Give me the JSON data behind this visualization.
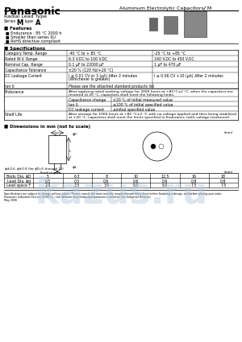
{
  "title_company": "Panasonic",
  "title_right": "Aluminum Electrolytic Capacitors/ M",
  "subtitle": "Radial Lead Type",
  "series_label": "Series",
  "series_value": "M",
  "type_label": "type",
  "type_value": "A",
  "features_title": "Features",
  "features": [
    "Endurance : 85 °C 2000 h",
    "Smaller than series SU",
    "RoHS directive compliant"
  ],
  "specs_title": "Specifications",
  "spec_rows": [
    [
      "Category Temp. Range",
      "-40 °C to + 85 °C",
      "-25 °C to +85 °C"
    ],
    [
      "Rated W.V. Range",
      "6.3 V.DC to 100 V.DC",
      "160 V.DC to 450 V.DC"
    ],
    [
      "Nominal Cap. Range",
      "0.1 μF to 22000 μF",
      "1 μF to 470 μF"
    ],
    [
      "Capacitance Tolerance",
      "±20 % (120 Hz/+20 °C)",
      ""
    ],
    [
      "DC Leakage Current",
      "I ≤ 0.01 CV or 3 (μA) After 2 minutes\n(Whichever is greater)",
      "I ≤ 0.06 CV +10 (μA) After 2 minutes"
    ],
    [
      "tan δ",
      "Please see the attached standard products list",
      ""
    ]
  ],
  "endurance_intro": "After applying rated working voltage for 2000 hours at +85°C±2 °C, when the capacitors are\nrestored to 20 °C, capacitors shall meet the following limits.",
  "endurance_title": "Endurance",
  "endurance_rows": [
    [
      "Capacitance change",
      "±20 % of initial measured value"
    ],
    [
      "tan δ",
      "≤100 % of initial specified value"
    ],
    [
      "DC leakage current",
      "≤initial specified value"
    ]
  ],
  "shelf_life_title": "Shelf Life",
  "shelf_life_text": "After storage for 1000 hours at +85 °C±2 °C with no voltage applied and then being stabilized\nat +20 °C, capacitors shall meet the limits specified in Endurance (with voltage treatment).",
  "dimensions_title": "Dimensions in mm (not to scale)",
  "dim_table_headers": [
    "Body Dia. ϕD",
    "5",
    "6.3",
    "8",
    "10",
    "12.5",
    "16",
    "18"
  ],
  "dim_rows": [
    [
      "Lead Dia. ϕd",
      "0.5",
      "0.5",
      "0.6",
      "0.6",
      "0.6",
      "0.8",
      "0.8"
    ],
    [
      "Lead space F",
      "2.0",
      "2.5",
      "3.5",
      "5.0",
      "5.0",
      "7.5",
      "7.5"
    ]
  ],
  "footer_text": "Specifications are subject to change without notice. Please consult the most recently issued relevant data sheet before finalizing a design, and before placing your order.\nPanasonic Industrial Devices SUNX Co., Ltd. Website http://industrial.panasonic.com/ac/e/ (for Industrial Devices)\nMay 2006",
  "bg_color": "#ffffff",
  "watermark_color": "#b0c8dc"
}
